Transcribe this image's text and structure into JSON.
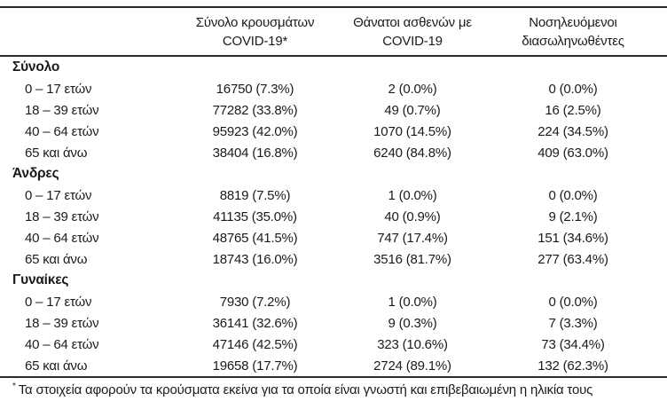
{
  "table": {
    "header_cols": [
      {
        "line1": "Σύνολο κρουσμάτων",
        "line2": "COVID-19*"
      },
      {
        "line1": "Θάνατοι ασθενών με",
        "line2": "COVID-19"
      },
      {
        "line1": "Νοσηλευόμενοι",
        "line2": "διασωληνωθέντες"
      }
    ],
    "groups": [
      {
        "label": "Σύνολο",
        "rows": [
          {
            "age": "0 – 17 ετών",
            "cases": "16750 (7.3%)",
            "deaths": "2 (0.0%)",
            "intubated": "0 (0.0%)"
          },
          {
            "age": "18 – 39 ετών",
            "cases": "77282 (33.8%)",
            "deaths": "49 (0.7%)",
            "intubated": "16 (2.5%)"
          },
          {
            "age": "40 – 64 ετών",
            "cases": "95923 (42.0%)",
            "deaths": "1070 (14.5%)",
            "intubated": "224 (34.5%)"
          },
          {
            "age": "65 και άνω",
            "cases": "38404 (16.8%)",
            "deaths": "6240 (84.8%)",
            "intubated": "409 (63.0%)"
          }
        ]
      },
      {
        "label": "Άνδρες",
        "rows": [
          {
            "age": "0 – 17 ετών",
            "cases": "8819 (7.5%)",
            "deaths": "1 (0.0%)",
            "intubated": "0 (0.0%)"
          },
          {
            "age": "18 – 39 ετών",
            "cases": "41135 (35.0%)",
            "deaths": "40 (0.9%)",
            "intubated": "9 (2.1%)"
          },
          {
            "age": "40 – 64 ετών",
            "cases": "48765 (41.5%)",
            "deaths": "747 (17.4%)",
            "intubated": "151 (34.6%)"
          },
          {
            "age": "65 και άνω",
            "cases": "18743 (16.0%)",
            "deaths": "3516 (81.7%)",
            "intubated": "277 (63.4%)"
          }
        ]
      },
      {
        "label": "Γυναίκες",
        "rows": [
          {
            "age": "0 – 17 ετών",
            "cases": "7930 (7.2%)",
            "deaths": "1 (0.0%)",
            "intubated": "0 (0.0%)"
          },
          {
            "age": "18 – 39 ετών",
            "cases": "36141 (32.6%)",
            "deaths": "9 (0.3%)",
            "intubated": "7 (3.3%)"
          },
          {
            "age": "40 – 64 ετών",
            "cases": "47146 (42.5%)",
            "deaths": "323 (10.6%)",
            "intubated": "73 (34.4%)"
          },
          {
            "age": "65 και άνω",
            "cases": "19658 (17.7%)",
            "deaths": "2724 (89.1%)",
            "intubated": "132 (62.3%)"
          }
        ]
      }
    ],
    "footnote": {
      "marker": "*",
      "text": "Τα στοιχεία αφορούν τα κρούσματα εκείνα για τα οποία είναι γνωστή και επιβεβαιωμένη η ηλικία τους"
    }
  }
}
